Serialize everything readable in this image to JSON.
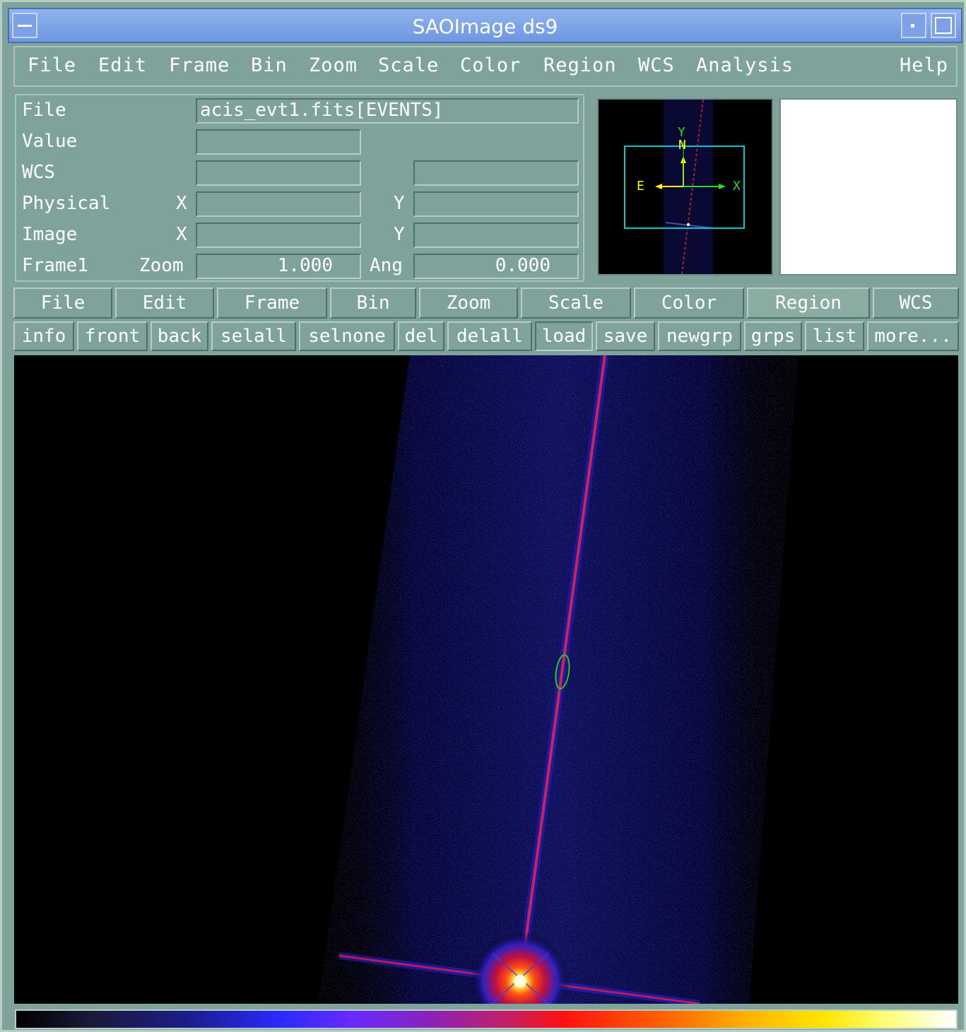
{
  "window": {
    "title": "SAOImage ds9"
  },
  "menubar": {
    "items": [
      "File",
      "Edit",
      "Frame",
      "Bin",
      "Zoom",
      "Scale",
      "Color",
      "Region",
      "WCS",
      "Analysis"
    ],
    "help": "Help"
  },
  "info": {
    "file_label": "File",
    "file_value": "acis_evt1.fits[EVENTS]",
    "value_label": "Value",
    "wcs_label": "WCS",
    "physical_label": "Physical",
    "image_label": "Image",
    "frame_label": "Frame1",
    "x_label": "X",
    "y_label": "Y",
    "zoom_label": "Zoom",
    "zoom_value": "1.000",
    "ang_label": "Ang",
    "ang_value": "0.000"
  },
  "panner": {
    "compass_y": "Y",
    "compass_n": "N",
    "compass_e": "E",
    "compass_x": "X"
  },
  "buttonbar": {
    "items": [
      "File",
      "Edit",
      "Frame",
      "Bin",
      "Zoom",
      "Scale",
      "Color",
      "Region",
      "WCS"
    ],
    "active": "Region"
  },
  "region_buttons": {
    "items": [
      "info",
      "front",
      "back",
      "selall",
      "selnone",
      "del",
      "delall",
      "load",
      "save",
      "newgrp",
      "grps",
      "list",
      "more..."
    ],
    "pressed": "load"
  },
  "colors": {
    "panel_bg": "#7fa39a",
    "title_bg": "#7da1e6",
    "region_green": "#22cc22",
    "compass_yellow": "#ffff00",
    "compass_green": "#22dd22",
    "panner_box": "#00cccc"
  }
}
